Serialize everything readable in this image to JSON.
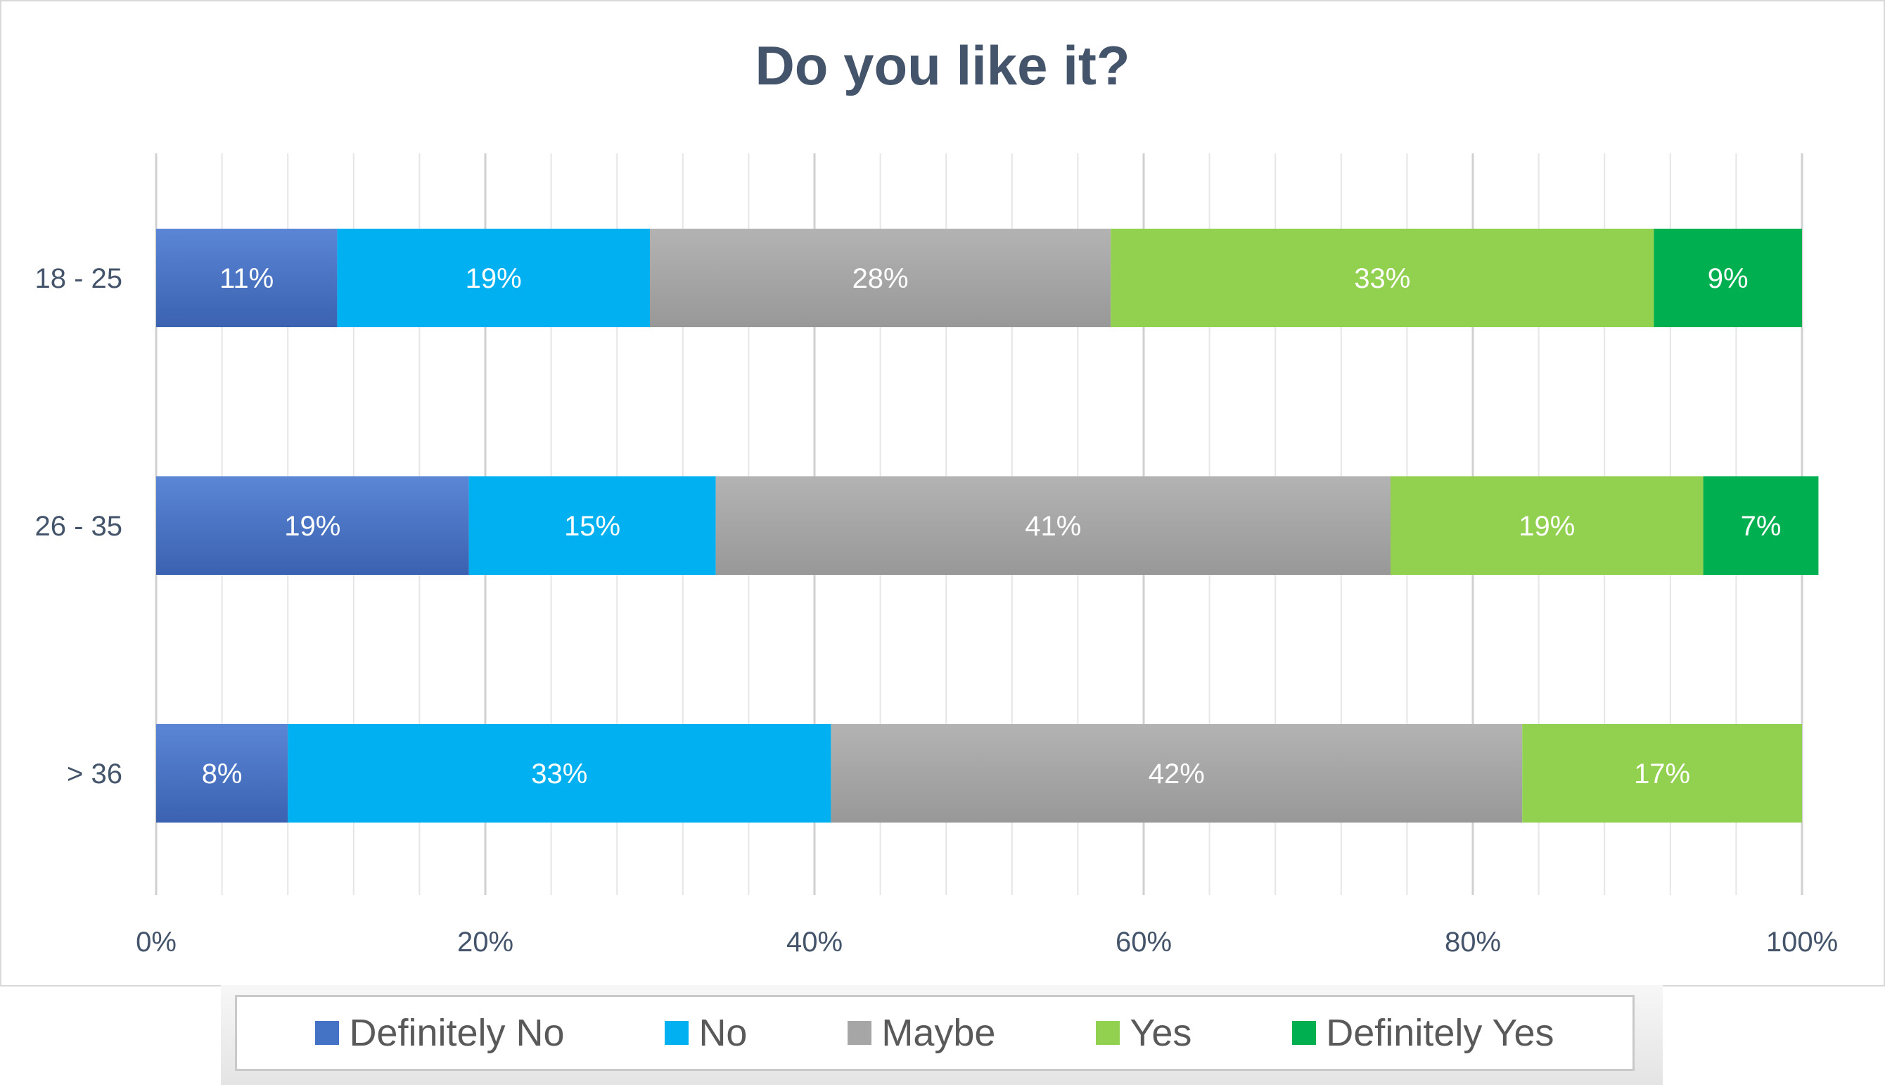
{
  "chart_data": {
    "type": "bar",
    "orientation": "horizontal",
    "stacked": "100%",
    "title": "Do you like it?",
    "categories": [
      "18 - 25",
      "26 - 35",
      "> 36"
    ],
    "series": [
      {
        "name": "Definitely No",
        "color": "#4472c4",
        "values": [
          11,
          19,
          8
        ],
        "labels": [
          "11%",
          "19%",
          "8%"
        ]
      },
      {
        "name": "No",
        "color": "#00b0f0",
        "values": [
          19,
          15,
          33
        ],
        "labels": [
          "19%",
          "15%",
          "33%"
        ]
      },
      {
        "name": "Maybe",
        "color": "#a6a6a6",
        "values": [
          28,
          41,
          42
        ],
        "labels": [
          "28%",
          "41%",
          "42%"
        ]
      },
      {
        "name": "Yes",
        "color": "#92d050",
        "values": [
          33,
          19,
          17
        ],
        "labels": [
          "33%",
          "19%",
          "17%"
        ]
      },
      {
        "name": "Definitely Yes",
        "color": "#00b050",
        "values": [
          9,
          7,
          0
        ],
        "labels": [
          "9%",
          "7%",
          ""
        ]
      }
    ],
    "xlim": [
      0,
      100
    ],
    "x_ticks": [
      "0%",
      "20%",
      "40%",
      "60%",
      "80%",
      "100%"
    ],
    "grid": true,
    "legend_position": "bottom"
  }
}
